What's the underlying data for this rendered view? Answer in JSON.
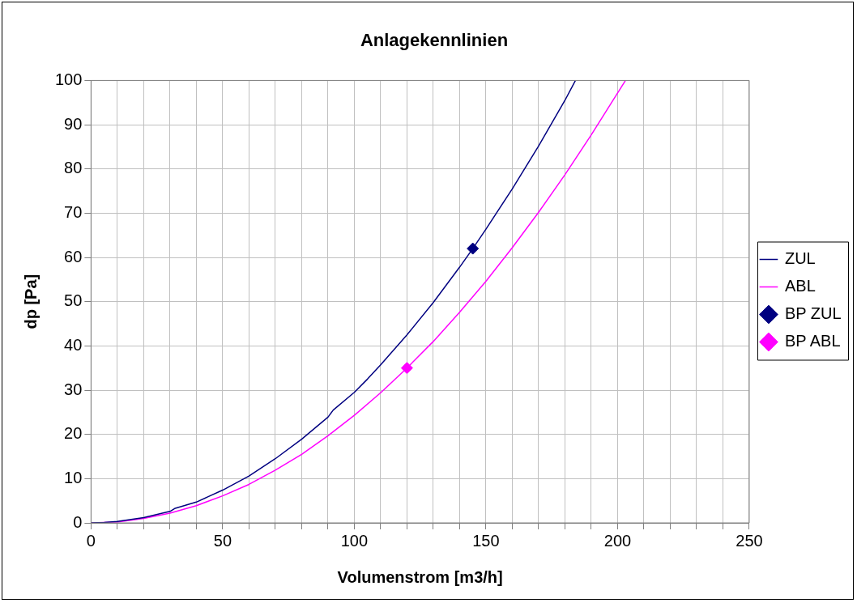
{
  "chart_data": {
    "type": "line",
    "title": "Anlagekennlinien",
    "xlabel": "Volumenstrom [m3/h]",
    "ylabel": "dp [Pa]",
    "xlim": [
      0,
      250
    ],
    "xticks": [
      0,
      {
        "value": 10,
        "label": null
      },
      {
        "value": 20,
        "label": null
      },
      {
        "value": 30,
        "label": null
      },
      {
        "value": 40,
        "label": null
      },
      50,
      {
        "value": 60,
        "label": null
      },
      {
        "value": 70,
        "label": null
      },
      {
        "value": 80,
        "label": null
      },
      {
        "value": 90,
        "label": null
      },
      100,
      {
        "value": 110,
        "label": null
      },
      {
        "value": 120,
        "label": null
      },
      {
        "value": 130,
        "label": null
      },
      {
        "value": 140,
        "label": null
      },
      150,
      {
        "value": 160,
        "label": null
      },
      {
        "value": 170,
        "label": null
      },
      {
        "value": 180,
        "label": null
      },
      {
        "value": 190,
        "label": null
      },
      200,
      {
        "value": 210,
        "label": null
      },
      {
        "value": 220,
        "label": null
      },
      {
        "value": 230,
        "label": null
      },
      {
        "value": 240,
        "label": null
      },
      250
    ],
    "ylim": [
      0,
      100
    ],
    "yticks": [
      0,
      10,
      20,
      30,
      40,
      50,
      60,
      70,
      80,
      90,
      100
    ],
    "grid": true,
    "legend": "right",
    "series": [
      {
        "name": "ZUL",
        "type": "line",
        "color": "#000080",
        "marker": "none",
        "x": [
          0,
          5,
          10,
          20,
          30,
          32,
          40,
          50,
          60,
          70,
          80,
          90,
          92,
          100,
          105,
          110,
          120,
          130,
          140,
          145,
          150,
          160,
          170,
          180,
          184
        ],
        "values": [
          0,
          0.1,
          0.3,
          1.2,
          2.6,
          3.3,
          4.7,
          7.4,
          10.6,
          14.5,
          18.9,
          23.9,
          25.5,
          29.5,
          32.5,
          35.7,
          42.5,
          49.8,
          57.8,
          62,
          66.4,
          75.5,
          85.2,
          95.5,
          100
        ]
      },
      {
        "name": "ABL",
        "type": "line",
        "color": "#ff00ff",
        "marker": "none",
        "x": [
          0,
          5,
          10,
          20,
          30,
          40,
          50,
          60,
          65,
          70,
          80,
          90,
          100,
          110,
          120,
          130,
          140,
          150,
          160,
          170,
          180,
          190,
          203
        ],
        "values": [
          0,
          0.1,
          0.2,
          1,
          2.2,
          3.9,
          6.1,
          8.7,
          10.3,
          11.9,
          15.5,
          19.7,
          24.3,
          29.4,
          35,
          41,
          47.6,
          54.6,
          62.2,
          70.2,
          78.7,
          87.7,
          100
        ]
      },
      {
        "name": "BP ZUL",
        "type": "scatter",
        "color": "#000080",
        "marker": "diamond",
        "x": [
          145
        ],
        "values": [
          62
        ]
      },
      {
        "name": "BP ABL",
        "type": "scatter",
        "color": "#ff00ff",
        "marker": "diamond",
        "x": [
          120
        ],
        "values": [
          35
        ]
      }
    ]
  }
}
